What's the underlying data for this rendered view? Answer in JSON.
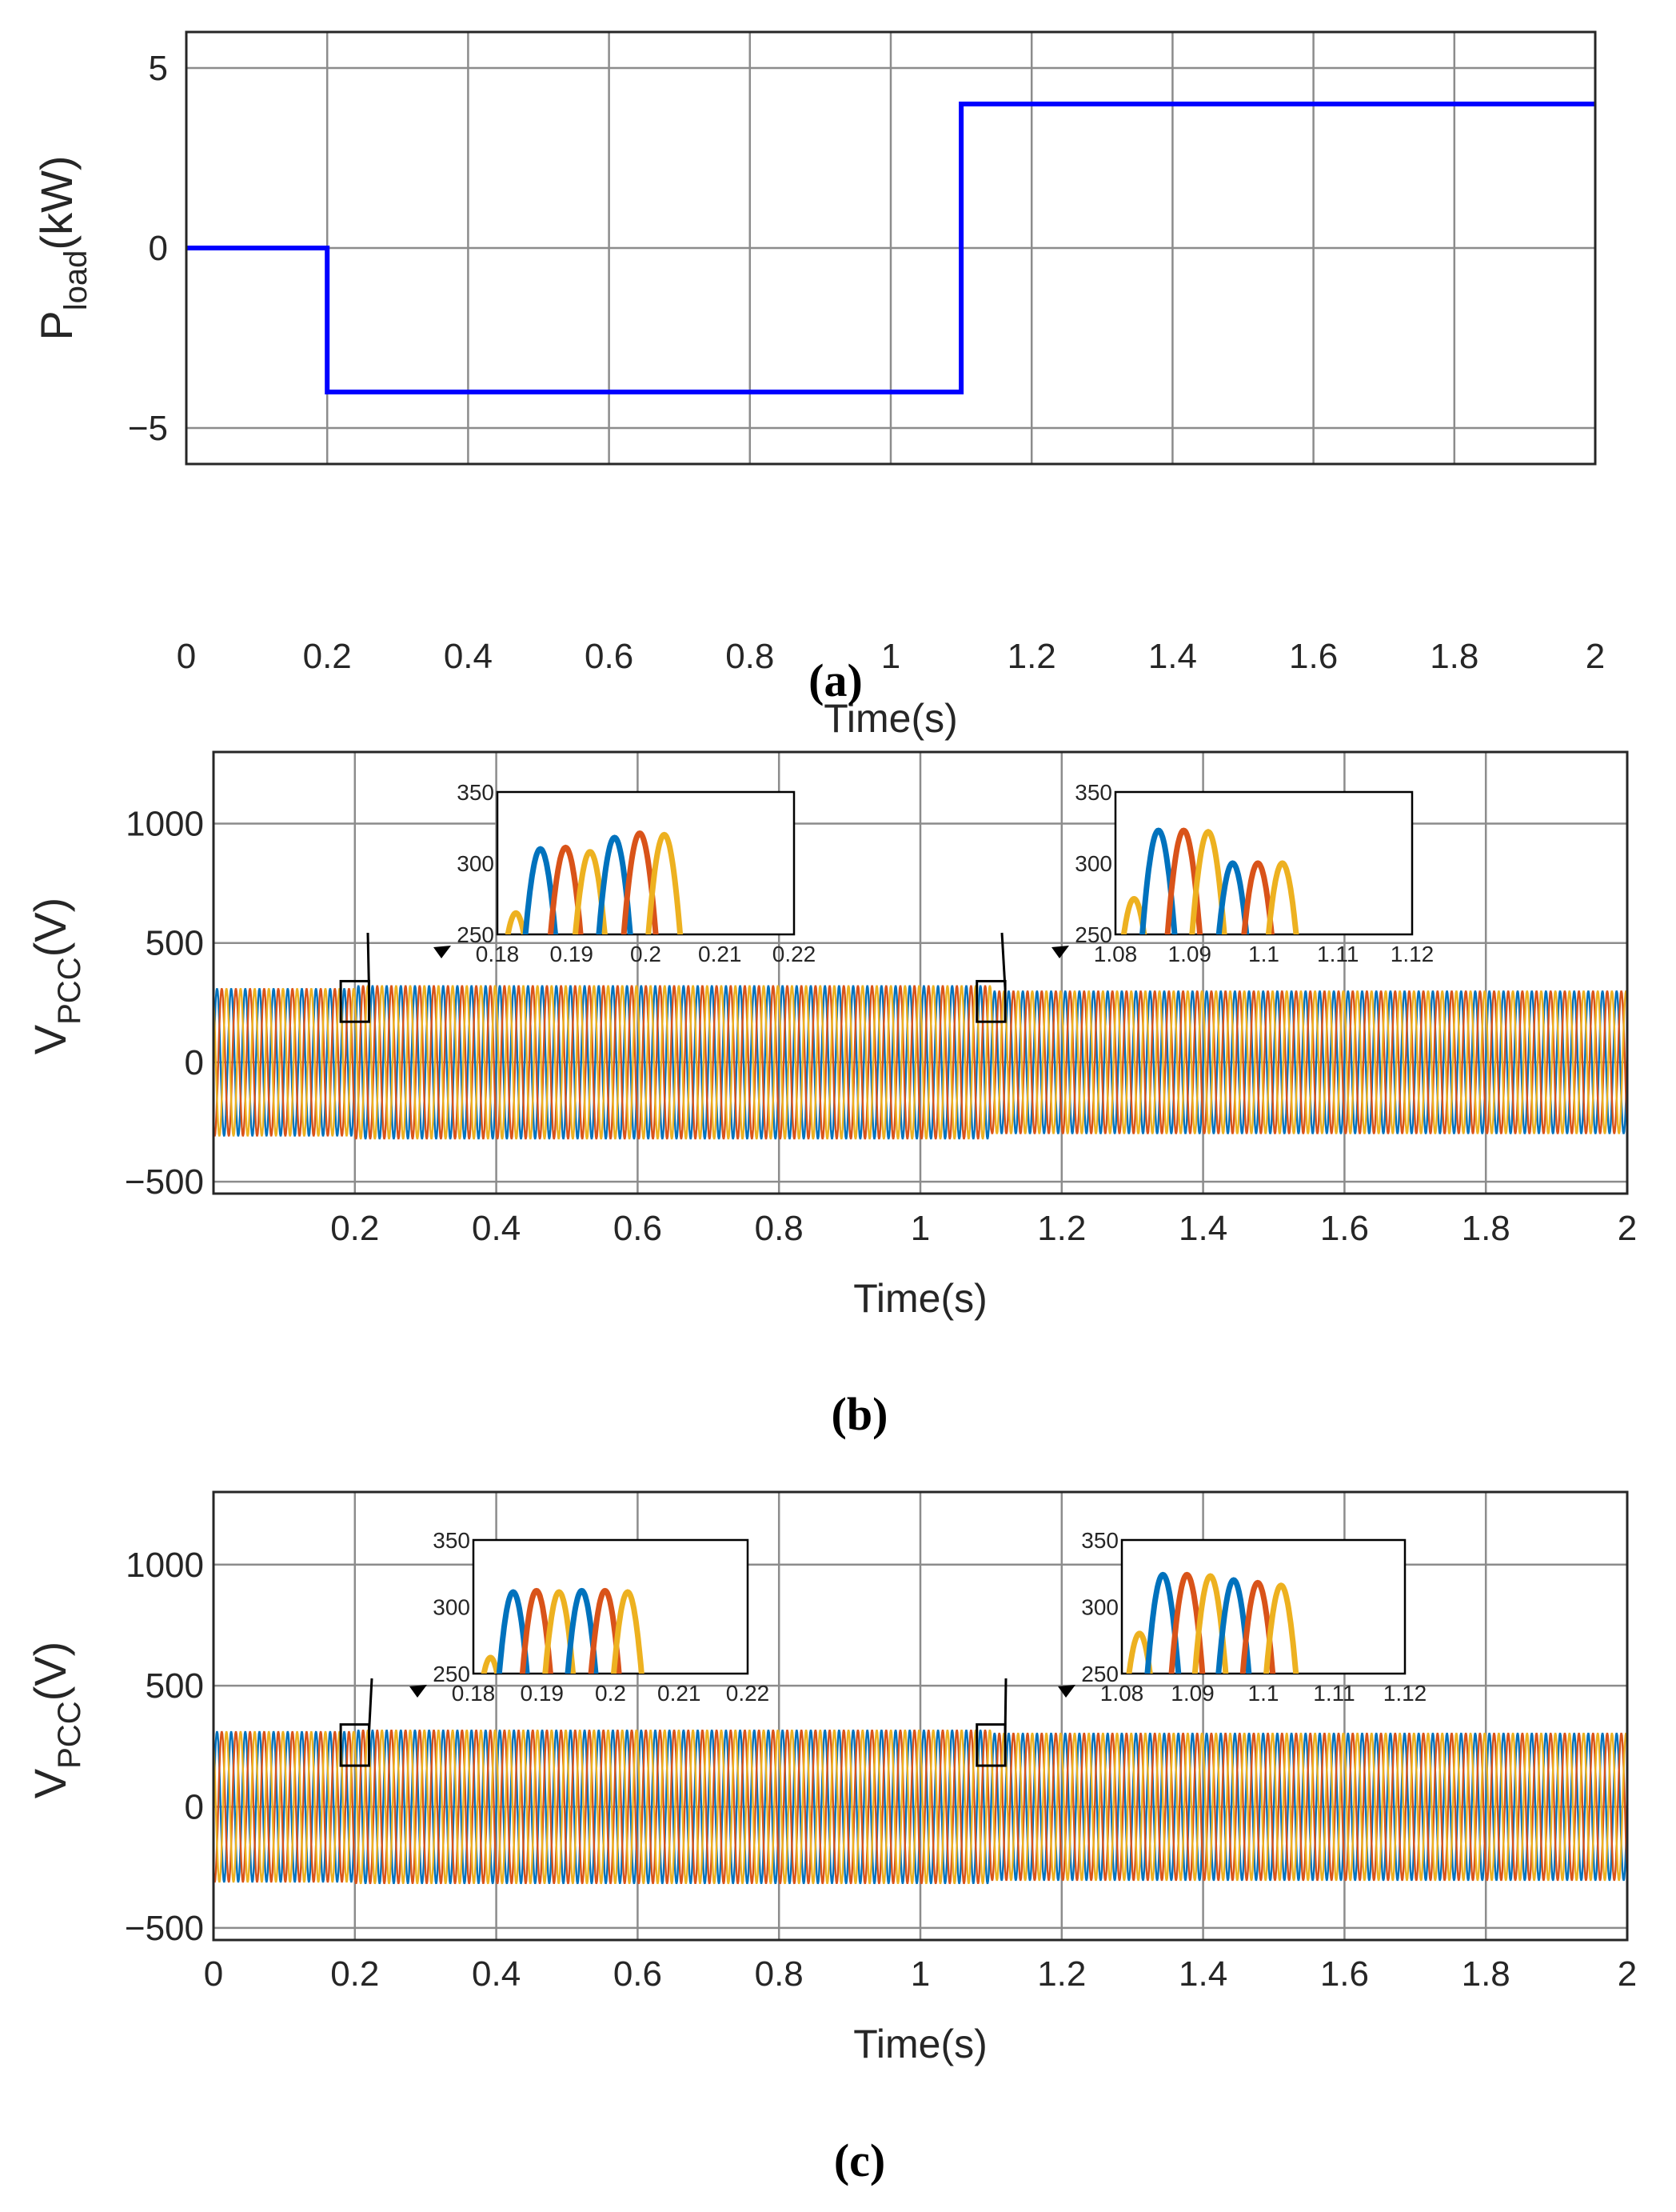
{
  "chart_data": [
    {
      "id": "a",
      "type": "line",
      "panel_label": "(a)",
      "xlabel": "Time(s)",
      "ylabel_main": "P",
      "ylabel_sub": "load",
      "ylabel_tail": "(kW)",
      "xlim": [
        0,
        2
      ],
      "ylim": [
        -6,
        6
      ],
      "xticks": [
        0,
        0.2,
        0.4,
        0.6,
        0.8,
        1,
        1.2,
        1.4,
        1.6,
        1.8,
        2
      ],
      "xtick_labels": [
        "0",
        "0.2",
        "0.4",
        "0.6",
        "0.8",
        "1",
        "1.2",
        "1.4",
        "1.6",
        "1.8",
        "2"
      ],
      "yticks": [
        -5,
        0,
        5
      ],
      "ytick_labels": [
        "−5",
        "0",
        "5"
      ],
      "grid": true,
      "series": [
        {
          "name": "P_load",
          "color": "#0000ff",
          "x": [
            0,
            0.2,
            0.2,
            1.1,
            1.1,
            2
          ],
          "y": [
            0,
            0,
            -4,
            -4,
            4,
            4
          ]
        }
      ]
    },
    {
      "id": "b",
      "type": "line",
      "panel_label": "(b)",
      "xlabel": "Time(s)",
      "ylabel_main": "V",
      "ylabel_sub": "PCC",
      "ylabel_tail": "(V)",
      "xlim": [
        0,
        2
      ],
      "ylim": [
        -550,
        1300
      ],
      "xticks": [
        0.2,
        0.4,
        0.6,
        0.8,
        1,
        1.2,
        1.4,
        1.6,
        1.8,
        2
      ],
      "xtick_labels": [
        "0.2",
        "0.4",
        "0.6",
        "0.8",
        "1",
        "1.2",
        "1.4",
        "1.6",
        "1.8",
        "2"
      ],
      "yticks": [
        -500,
        0,
        500,
        1000
      ],
      "ytick_labels": [
        "−500",
        "0",
        "500",
        "1000"
      ],
      "grid": true,
      "frequency_hz": 50,
      "phase_colors": [
        "#0072bd",
        "#d95319",
        "#edb120"
      ],
      "amplitude_segments": [
        {
          "t_start": 0,
          "t_end": 0.2,
          "amplitude": 310
        },
        {
          "t_start": 0.2,
          "t_end": 1.1,
          "amplitude": 322
        },
        {
          "t_start": 1.1,
          "t_end": 2,
          "amplitude": 300
        }
      ],
      "zoom_boxes": [
        {
          "t_start": 0.18,
          "t_end": 0.22,
          "v_min": 170,
          "v_max": 340
        },
        {
          "t_start": 1.08,
          "t_end": 1.12,
          "v_min": 170,
          "v_max": 340
        }
      ],
      "insets": [
        {
          "xlim": [
            0.18,
            0.22
          ],
          "ylim": [
            250,
            350
          ],
          "xticks": [
            0.18,
            0.19,
            0.2,
            0.21,
            0.22
          ],
          "xtick_labels": [
            "0.18",
            "0.19",
            "0.2",
            "0.21",
            "0.22"
          ],
          "yticks": [
            250,
            300,
            350
          ],
          "ytick_labels": [
            "250",
            "300",
            "350"
          ],
          "peaks": [
            {
              "t": 0.1825,
              "v": 265,
              "phase": 2
            },
            {
              "t": 0.1858,
              "v": 310,
              "phase": 0
            },
            {
              "t": 0.1892,
              "v": 311,
              "phase": 1
            },
            {
              "t": 0.1925,
              "v": 308,
              "phase": 2
            },
            {
              "t": 0.1958,
              "v": 318,
              "phase": 0
            },
            {
              "t": 0.1992,
              "v": 321,
              "phase": 1
            },
            {
              "t": 0.2025,
              "v": 320,
              "phase": 2
            }
          ]
        },
        {
          "xlim": [
            1.08,
            1.12
          ],
          "ylim": [
            250,
            350
          ],
          "xticks": [
            1.08,
            1.09,
            1.1,
            1.11,
            1.12
          ],
          "xtick_labels": [
            "1.08",
            "1.09",
            "1.1",
            "1.11",
            "1.12"
          ],
          "yticks": [
            250,
            300,
            350
          ],
          "ytick_labels": [
            "250",
            "300",
            "350"
          ],
          "peaks": [
            {
              "t": 1.0825,
              "v": 275,
              "phase": 2
            },
            {
              "t": 1.0858,
              "v": 323,
              "phase": 0
            },
            {
              "t": 1.0892,
              "v": 323,
              "phase": 1
            },
            {
              "t": 1.0925,
              "v": 322,
              "phase": 2
            },
            {
              "t": 1.0958,
              "v": 300,
              "phase": 0
            },
            {
              "t": 1.0992,
              "v": 300,
              "phase": 1
            },
            {
              "t": 1.1025,
              "v": 300,
              "phase": 2
            }
          ]
        }
      ]
    },
    {
      "id": "c",
      "type": "line",
      "panel_label": "(c)",
      "xlabel": "Time(s)",
      "ylabel_main": "V",
      "ylabel_sub": "PCC",
      "ylabel_tail": "(V)",
      "xlim": [
        0,
        2
      ],
      "ylim": [
        -550,
        1300
      ],
      "xticks": [
        0,
        0.2,
        0.4,
        0.6,
        0.8,
        1,
        1.2,
        1.4,
        1.6,
        1.8,
        2
      ],
      "xtick_labels": [
        "0",
        "0.2",
        "0.4",
        "0.6",
        "0.8",
        "1",
        "1.2",
        "1.4",
        "1.6",
        "1.8",
        "2"
      ],
      "yticks": [
        -500,
        0,
        500,
        1000
      ],
      "ytick_labels": [
        "−500",
        "0",
        "500",
        "1000"
      ],
      "grid": true,
      "frequency_hz": 50,
      "phase_colors": [
        "#0072bd",
        "#d95319",
        "#edb120"
      ],
      "amplitude_segments": [
        {
          "t_start": 0,
          "t_end": 0.2,
          "amplitude": 312
        },
        {
          "t_start": 0.2,
          "t_end": 1.1,
          "amplitude": 318
        },
        {
          "t_start": 1.1,
          "t_end": 2,
          "amplitude": 305
        }
      ],
      "zoom_boxes": [
        {
          "t_start": 0.18,
          "t_end": 0.22,
          "v_min": 170,
          "v_max": 340
        },
        {
          "t_start": 1.08,
          "t_end": 1.12,
          "v_min": 170,
          "v_max": 340
        }
      ],
      "insets": [
        {
          "xlim": [
            0.18,
            0.22
          ],
          "ylim": [
            250,
            350
          ],
          "xticks": [
            0.18,
            0.19,
            0.2,
            0.21,
            0.22
          ],
          "xtick_labels": [
            "0.18",
            "0.19",
            "0.2",
            "0.21",
            "0.22"
          ],
          "yticks": [
            250,
            300,
            350
          ],
          "ytick_labels": [
            "250",
            "300",
            "350"
          ],
          "peaks": [
            {
              "t": 0.1825,
              "v": 262,
              "phase": 2
            },
            {
              "t": 0.1858,
              "v": 311,
              "phase": 0
            },
            {
              "t": 0.1892,
              "v": 312,
              "phase": 1
            },
            {
              "t": 0.1925,
              "v": 311,
              "phase": 2
            },
            {
              "t": 0.1958,
              "v": 312,
              "phase": 0
            },
            {
              "t": 0.1992,
              "v": 312,
              "phase": 1
            },
            {
              "t": 0.2025,
              "v": 311,
              "phase": 2
            }
          ]
        },
        {
          "xlim": [
            1.08,
            1.12
          ],
          "ylim": [
            250,
            350
          ],
          "xticks": [
            1.08,
            1.09,
            1.1,
            1.11,
            1.12
          ],
          "xtick_labels": [
            "1.08",
            "1.09",
            "1.1",
            "1.11",
            "1.12"
          ],
          "yticks": [
            250,
            300,
            350
          ],
          "ytick_labels": [
            "250",
            "300",
            "350"
          ],
          "peaks": [
            {
              "t": 1.0825,
              "v": 280,
              "phase": 2
            },
            {
              "t": 1.0858,
              "v": 324,
              "phase": 0
            },
            {
              "t": 1.0892,
              "v": 324,
              "phase": 1
            },
            {
              "t": 1.0925,
              "v": 323,
              "phase": 2
            },
            {
              "t": 1.0958,
              "v": 320,
              "phase": 0
            },
            {
              "t": 1.0992,
              "v": 318,
              "phase": 1
            },
            {
              "t": 1.1025,
              "v": 316,
              "phase": 2
            }
          ]
        }
      ]
    }
  ]
}
